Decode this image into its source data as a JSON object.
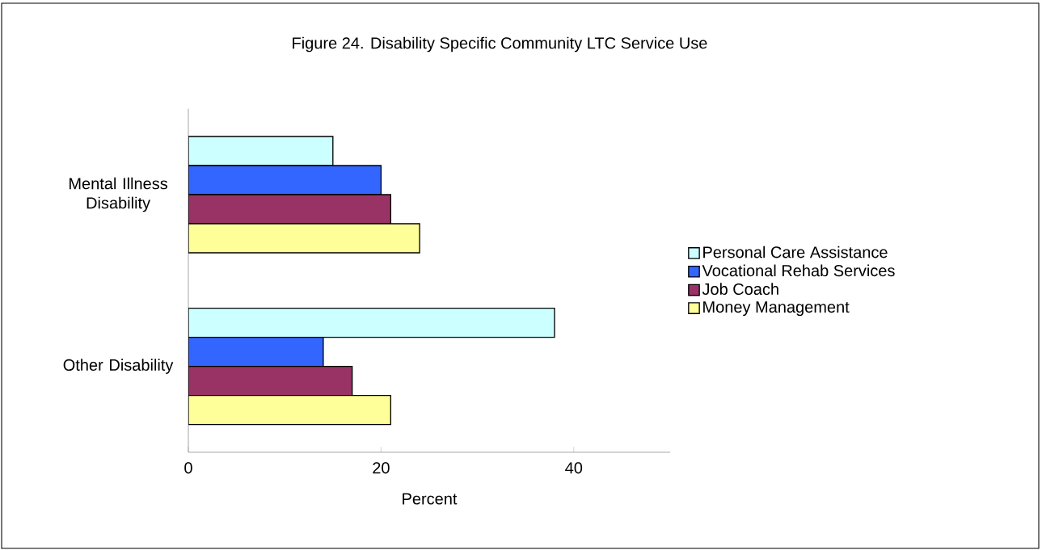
{
  "chart_data": {
    "type": "bar",
    "orientation": "horizontal",
    "title": "Figure 24.  Disability Specific Community LTC Service Use",
    "xlabel": "Percent",
    "categories": [
      "Mental Illness Disability",
      "Other Disability"
    ],
    "series": [
      {
        "name": "Personal Care Assistance",
        "color": "#ccffff",
        "values": [
          15,
          38
        ]
      },
      {
        "name": "Vocational Rehab Services",
        "color": "#3366ff",
        "values": [
          20,
          14
        ]
      },
      {
        "name": "Job Coach",
        "color": "#993366",
        "values": [
          21,
          17
        ]
      },
      {
        "name": "Money Management",
        "color": "#ffff99",
        "values": [
          24,
          21
        ]
      }
    ],
    "xlim": [
      0,
      50
    ],
    "xticks": [
      0,
      20,
      40
    ],
    "legend": "right"
  }
}
